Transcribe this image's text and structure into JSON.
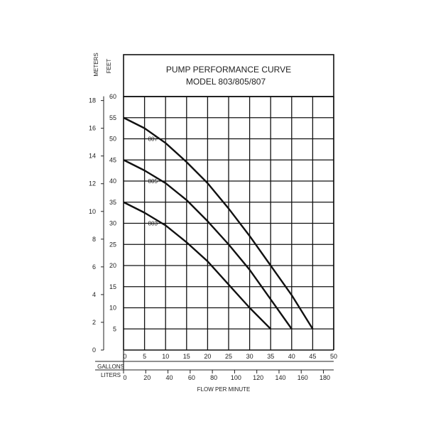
{
  "chart_data": {
    "type": "line",
    "title": "PUMP PERFORMANCE CURVE",
    "subtitle": "MODEL 803/805/807",
    "xlabel": "FLOW PER MINUTE",
    "x_unit_labels": {
      "gallons": "GALLONS",
      "liters": "LITERS"
    },
    "y_unit_labels": {
      "meters": "METERS",
      "feet": "FEET"
    },
    "xlim": [
      0,
      50
    ],
    "ylim": [
      0,
      60
    ],
    "x_ticks": [
      "5",
      "10",
      "15",
      "20",
      "25",
      "30",
      "35",
      "40",
      "45",
      "50"
    ],
    "x0_label": "0",
    "liter_ticks": [
      "0",
      "20",
      "40",
      "60",
      "80",
      "100",
      "120",
      "140",
      "160",
      "180"
    ],
    "feet_ticks": [
      "5",
      "10",
      "15",
      "20",
      "25",
      "30",
      "35",
      "40",
      "45",
      "50",
      "55",
      "60"
    ],
    "meter_ticks": [
      "0",
      "2",
      "4",
      "6",
      "8",
      "10",
      "12",
      "14",
      "16",
      "18"
    ],
    "grid": true,
    "series": [
      {
        "name": "803",
        "x": [
          0,
          5,
          10,
          15,
          20,
          25,
          30,
          35
        ],
        "y": [
          35,
          32.5,
          29.5,
          25.5,
          21,
          15.5,
          10,
          5
        ]
      },
      {
        "name": "805",
        "x": [
          0,
          5,
          10,
          15,
          20,
          25,
          30,
          35,
          40
        ],
        "y": [
          45,
          42.5,
          39.5,
          35.5,
          30.5,
          25,
          19,
          12,
          5
        ]
      },
      {
        "name": "807",
        "x": [
          0,
          5,
          10,
          15,
          20,
          25,
          30,
          35,
          40,
          45
        ],
        "y": [
          55,
          52.5,
          49,
          44.5,
          39.5,
          33.5,
          27,
          20,
          13,
          5
        ]
      }
    ]
  }
}
